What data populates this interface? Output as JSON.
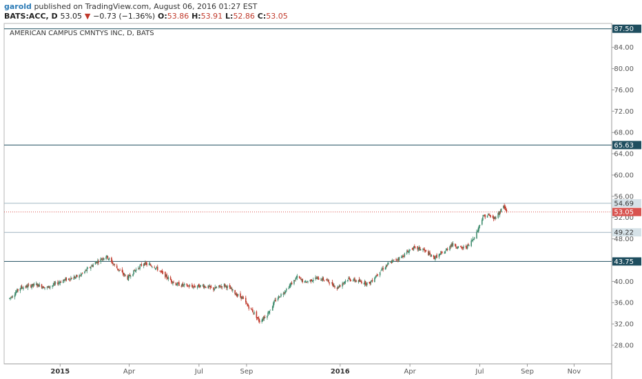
{
  "header": {
    "author": "garold",
    "published": "published on TradingView.com, August 06, 2016 01:27 EST",
    "symbol_line": "BATS:ACC, D",
    "last": "53.05",
    "change": "−0.73 (−1.36%)",
    "open_label": "O:",
    "open": "53.86",
    "high_label": "H:",
    "high": "53.91",
    "low_label": "L:",
    "low": "52.86",
    "close_label": "C:",
    "close": "53.05"
  },
  "chart_title": "AMERICAN CAMPUS CMNTYS INC, D, BATS",
  "colors": {
    "up": "#3f8c6e",
    "down": "#c0392b",
    "hline_dark": "#1f4e5f",
    "hline_light": "#9fb4c0",
    "last_price": "#d9534f",
    "grid_border": "#999999"
  },
  "chart_data": {
    "type": "candlestick",
    "title": "AMERICAN CAMPUS CMNTYS INC, D, BATS",
    "ylim": [
      24.5,
      88.5
    ],
    "y_ticks": [
      "28.00",
      "32.00",
      "36.00",
      "40.00",
      "44.00",
      "48.00",
      "52.00",
      "56.00",
      "60.00",
      "64.00",
      "68.00",
      "72.00",
      "76.00",
      "80.00",
      "84.00"
    ],
    "x_ticks": [
      {
        "label": "2015",
        "date": "2015-01-01",
        "bold": true
      },
      {
        "label": "Apr",
        "date": "2015-04-01",
        "bold": false
      },
      {
        "label": "Jul",
        "date": "2015-07-01",
        "bold": false
      },
      {
        "label": "Sep",
        "date": "2015-09-01",
        "bold": false
      },
      {
        "label": "2016",
        "date": "2016-01-01",
        "bold": true
      },
      {
        "label": "Apr",
        "date": "2016-04-01",
        "bold": false
      },
      {
        "label": "Jul",
        "date": "2016-07-01",
        "bold": false
      },
      {
        "label": "Sep",
        "date": "2016-09-01",
        "bold": false
      },
      {
        "label": "Nov",
        "date": "2016-11-01",
        "bold": false
      }
    ],
    "x_range": [
      "2014-10-20",
      "2016-12-20"
    ],
    "price_path": [
      [
        "2014-10-27",
        36.8
      ],
      [
        "2014-11-10",
        38.8
      ],
      [
        "2014-12-01",
        39.4
      ],
      [
        "2014-12-15",
        38.8
      ],
      [
        "2015-01-05",
        40.2
      ],
      [
        "2015-01-26",
        41.0
      ],
      [
        "2015-02-16",
        43.5
      ],
      [
        "2015-03-02",
        44.8
      ],
      [
        "2015-03-16",
        42.5
      ],
      [
        "2015-03-30",
        40.6
      ],
      [
        "2015-04-08",
        42.0
      ],
      [
        "2015-04-20",
        43.4
      ],
      [
        "2015-05-04",
        42.8
      ],
      [
        "2015-05-20",
        40.8
      ],
      [
        "2015-06-01",
        39.5
      ],
      [
        "2015-06-22",
        39.0
      ],
      [
        "2015-07-06",
        39.2
      ],
      [
        "2015-07-20",
        38.6
      ],
      [
        "2015-08-03",
        39.3
      ],
      [
        "2015-08-12",
        38.5
      ],
      [
        "2015-08-19",
        37.5
      ],
      [
        "2015-08-26",
        37.0
      ],
      [
        "2015-09-02",
        35.5
      ],
      [
        "2015-09-10",
        34.2
      ],
      [
        "2015-09-18",
        32.5
      ],
      [
        "2015-09-28",
        33.8
      ],
      [
        "2015-10-09",
        36.5
      ],
      [
        "2015-10-23",
        38.5
      ],
      [
        "2015-11-06",
        40.8
      ],
      [
        "2015-11-16",
        39.8
      ],
      [
        "2015-11-30",
        40.6
      ],
      [
        "2015-12-14",
        40.3
      ],
      [
        "2015-12-28",
        38.8
      ],
      [
        "2016-01-11",
        40.5
      ],
      [
        "2016-01-25",
        40.0
      ],
      [
        "2016-02-08",
        39.6
      ],
      [
        "2016-02-22",
        42.0
      ],
      [
        "2016-03-07",
        43.6
      ],
      [
        "2016-03-21",
        44.6
      ],
      [
        "2016-04-04",
        46.3
      ],
      [
        "2016-04-18",
        46.0
      ],
      [
        "2016-05-02",
        44.4
      ],
      [
        "2016-05-16",
        45.5
      ],
      [
        "2016-05-25",
        47.0
      ],
      [
        "2016-06-08",
        46.2
      ],
      [
        "2016-06-17",
        46.8
      ],
      [
        "2016-06-27",
        49.2
      ],
      [
        "2016-07-05",
        52.2
      ],
      [
        "2016-07-12",
        52.5
      ],
      [
        "2016-07-19",
        51.8
      ],
      [
        "2016-07-26",
        52.8
      ],
      [
        "2016-08-01",
        54.2
      ],
      [
        "2016-08-05",
        53.05
      ]
    ],
    "horizontal_lines": [
      {
        "price": 87.5,
        "label": "87.50",
        "style": "dark"
      },
      {
        "price": 65.63,
        "label": "65.63",
        "style": "dark"
      },
      {
        "price": 54.69,
        "label": "54.69",
        "style": "light"
      },
      {
        "price": 49.22,
        "label": "49.22",
        "style": "light"
      },
      {
        "price": 43.75,
        "label": "43.75",
        "style": "dark"
      }
    ],
    "last_price": {
      "price": 53.05,
      "label": "53.05"
    }
  }
}
